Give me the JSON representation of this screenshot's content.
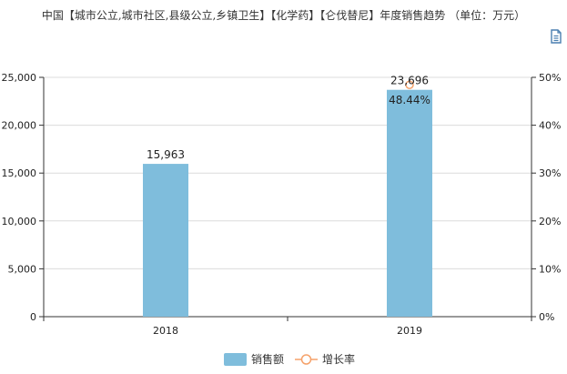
{
  "header": {
    "title": "中国【城市公立,城市社区,县级公立,乡镇卫生】【化学药】【仑伐替尼】年度销售趋势 （单位：万元）",
    "toolbar_icon": "data-view-icon"
  },
  "chart_data": {
    "type": "bar",
    "title": "中国【城市公立,城市社区,县级公立,乡镇卫生】【化学药】【仑伐替尼】年度销售趋势 （单位：万元）",
    "categories": [
      "2018",
      "2019"
    ],
    "series": [
      {
        "name": "销售额",
        "type": "bar",
        "axis": "left",
        "values": [
          15963,
          23696
        ],
        "labels": [
          "15,963",
          "23,696"
        ],
        "color": "#7fbddc"
      },
      {
        "name": "增长率",
        "type": "line",
        "axis": "right",
        "values": [
          null,
          48.44
        ],
        "labels": [
          "",
          "48.44%"
        ],
        "color": "#f5a26b"
      }
    ],
    "y_left": {
      "min": 0,
      "max": 25000,
      "ticks": [
        "0",
        "5,000",
        "10,000",
        "15,000",
        "20,000",
        "25,000"
      ]
    },
    "y_right": {
      "min": 0,
      "max": 50,
      "ticks": [
        "0%",
        "10%",
        "20%",
        "30%",
        "40%",
        "50%"
      ]
    },
    "grid": true,
    "legend": "bottom-center"
  }
}
